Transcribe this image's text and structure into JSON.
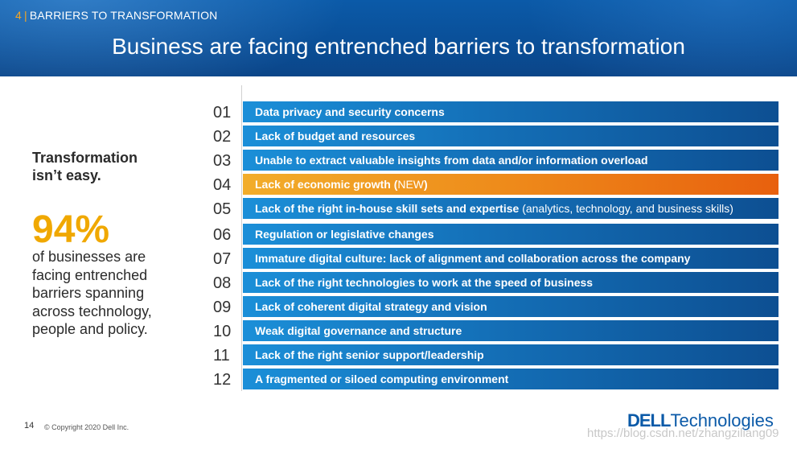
{
  "header": {
    "section_number": "4",
    "section_separator": "|",
    "section_label": "BARRIERS TO TRANSFORMATION",
    "title": "Business are facing entrenched barriers to transformation"
  },
  "left": {
    "heading_line1": "Transformation",
    "heading_line2": "isn’t easy.",
    "stat": "94%",
    "body_lines": [
      "of businesses are",
      "facing entrenched",
      "barriers spanning",
      "across technology,",
      "people and policy."
    ]
  },
  "barriers": [
    {
      "number": "01",
      "bold": "Data privacy and security concerns",
      "normal": "",
      "highlight": false
    },
    {
      "number": "02",
      "bold": "Lack of budget and resources",
      "normal": "",
      "highlight": false
    },
    {
      "number": "03",
      "bold": "Unable to extract valuable insights from data and/or information overload",
      "normal": "",
      "highlight": false
    },
    {
      "number": "04",
      "bold": "Lack of economic growth (",
      "normal": "NEW",
      "bold_after": ")",
      "highlight": true
    },
    {
      "number": "05",
      "bold": "Lack of the right in-house skill sets and expertise",
      "normal": " (analytics, technology, and business skills)",
      "highlight": false
    },
    {
      "number": "06",
      "bold": "Regulation or legislative changes",
      "normal": "",
      "highlight": false
    },
    {
      "number": "07",
      "bold": "Immature digital culture: lack of alignment and collaboration across the company",
      "normal": "",
      "highlight": false
    },
    {
      "number": "08",
      "bold": "Lack of the right technologies to work at the speed of business",
      "normal": "",
      "highlight": false
    },
    {
      "number": "09",
      "bold": "Lack of coherent digital strategy and vision",
      "normal": "",
      "highlight": false
    },
    {
      "number": "10",
      "bold": "Weak digital governance and structure",
      "normal": "",
      "highlight": false
    },
    {
      "number": "11",
      "bold": "Lack of the right senior support/leadership",
      "normal": "",
      "highlight": false
    },
    {
      "number": "12",
      "bold": "A fragmented or siloed computing environment",
      "normal": "",
      "highlight": false
    }
  ],
  "footer": {
    "page_number": "14",
    "copyright": "© Copyright 2020 Dell Inc.",
    "logo_dell": "DELL",
    "logo_tech": "Technologies",
    "watermark": "https://blog.csdn.net/zhangziliang09"
  },
  "colors": {
    "header_blue": "#0b5aa8",
    "bar_blue": "#1470b8",
    "highlight_orange": "#ee8a1a",
    "stat_gold": "#f0a800"
  }
}
